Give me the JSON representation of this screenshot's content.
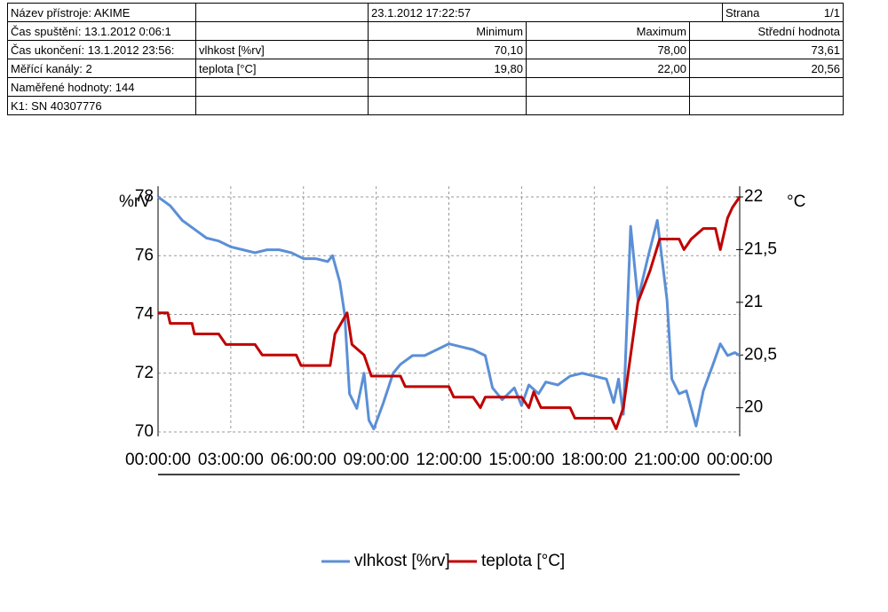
{
  "header": {
    "device": "Název přístroje: AKIME",
    "date": "23.1.2012 17:22:57",
    "page_label": "Strana",
    "page": "1/1"
  },
  "info": [
    "Čas spuštění: 13.1.2012 0:06:1",
    "Čas ukončení: 13.1.2012 23:56:",
    "Měřící kanály: 2",
    "Naměřené hodnoty: 144",
    "K1: SN 40307776"
  ],
  "stats": {
    "columns": [
      "Minimum",
      "Maximum",
      "Střední hodnota"
    ],
    "rows": [
      {
        "name": "vlhkost [%rv]",
        "values": [
          "70,10",
          "78,00",
          "73,61"
        ]
      },
      {
        "name": "teplota [°C]",
        "values": [
          "19,80",
          "22,00",
          "20,56"
        ]
      }
    ]
  },
  "chart_data": {
    "type": "line",
    "ylabel": "%rV",
    "y2label": "°C",
    "xlim": [
      0,
      24
    ],
    "xticks": [
      {
        "value": 0,
        "label": "00:00:00"
      },
      {
        "value": 3,
        "label": "03:00:00"
      },
      {
        "value": 6,
        "label": "06:00:00"
      },
      {
        "value": 9,
        "label": "09:00:00"
      },
      {
        "value": 12,
        "label": "12:00:00"
      },
      {
        "value": 15,
        "label": "15:00:00"
      },
      {
        "value": 18,
        "label": "18:00:00"
      },
      {
        "value": 21,
        "label": "21:00:00"
      },
      {
        "value": 24,
        "label": "00:00:00"
      }
    ],
    "ylim": [
      70,
      78
    ],
    "yticks": [
      70,
      72,
      74,
      76,
      78
    ],
    "y2lim": [
      19.77,
      22
    ],
    "y2ticks": [
      20,
      {
        "value": 20.5,
        "label": "20,5"
      },
      21,
      {
        "value": 21.5,
        "label": "21,5"
      },
      22
    ],
    "grid": true,
    "series": [
      {
        "name": "vlhkost [%rv]",
        "color": "#5b8fd6",
        "x": [
          0,
          0.5,
          1,
          1.5,
          2,
          2.5,
          3,
          3.5,
          4,
          4.5,
          5,
          5.5,
          6,
          6.5,
          7,
          7.2,
          7.5,
          7.7,
          7.9,
          8.2,
          8.5,
          8.7,
          8.9,
          9.3,
          9.7,
          10,
          10.5,
          11,
          11.5,
          12,
          12.5,
          13,
          13.5,
          13.8,
          14.2,
          14.7,
          15,
          15.3,
          15.7,
          16,
          16.5,
          17,
          17.5,
          18,
          18.5,
          18.8,
          19,
          19.2,
          19.5,
          19.8,
          20.2,
          20.6,
          21,
          21.2,
          21.5,
          21.8,
          22.2,
          22.5,
          22.9,
          23.2,
          23.5,
          23.8,
          24
        ],
        "values": [
          78.0,
          77.7,
          77.2,
          76.9,
          76.6,
          76.5,
          76.3,
          76.2,
          76.1,
          76.2,
          76.2,
          76.1,
          75.9,
          75.9,
          75.8,
          76.0,
          75.1,
          74.0,
          71.3,
          70.8,
          72.0,
          70.4,
          70.1,
          71.0,
          72.0,
          72.3,
          72.6,
          72.6,
          72.8,
          73.0,
          72.9,
          72.8,
          72.6,
          71.5,
          71.1,
          71.5,
          70.9,
          71.6,
          71.3,
          71.7,
          71.6,
          71.9,
          72.0,
          71.9,
          71.8,
          71.0,
          71.8,
          70.6,
          77.0,
          74.5,
          75.9,
          77.2,
          74.5,
          71.8,
          71.3,
          71.4,
          70.2,
          71.4,
          72.3,
          73.0,
          72.6,
          72.7,
          72.6
        ]
      },
      {
        "name": "teplota [°C]",
        "color": "#c00000",
        "axis": "y2",
        "x": [
          0,
          0.4,
          0.5,
          1,
          1.4,
          1.5,
          2.5,
          2.8,
          4,
          4.3,
          5.7,
          5.9,
          7.1,
          7.3,
          7.8,
          8,
          8.5,
          8.8,
          10,
          10.2,
          12,
          12.2,
          13,
          13.3,
          13.5,
          15,
          15.3,
          15.5,
          15.8,
          17,
          17.2,
          18.7,
          18.9,
          19.2,
          19.5,
          19.8,
          20.3,
          20.7,
          21.5,
          21.7,
          22,
          22.5,
          23,
          23.2,
          23.5,
          23.7,
          24
        ],
        "values": [
          20.9,
          20.9,
          20.8,
          20.8,
          20.8,
          20.7,
          20.7,
          20.6,
          20.6,
          20.5,
          20.5,
          20.4,
          20.4,
          20.7,
          20.9,
          20.6,
          20.5,
          20.3,
          20.3,
          20.2,
          20.2,
          20.1,
          20.1,
          20.0,
          20.1,
          20.1,
          20.0,
          20.15,
          20.0,
          20.0,
          19.9,
          19.9,
          19.8,
          20.0,
          20.5,
          21.0,
          21.3,
          21.6,
          21.6,
          21.5,
          21.6,
          21.7,
          21.7,
          21.5,
          21.8,
          21.9,
          22.0
        ]
      }
    ]
  }
}
